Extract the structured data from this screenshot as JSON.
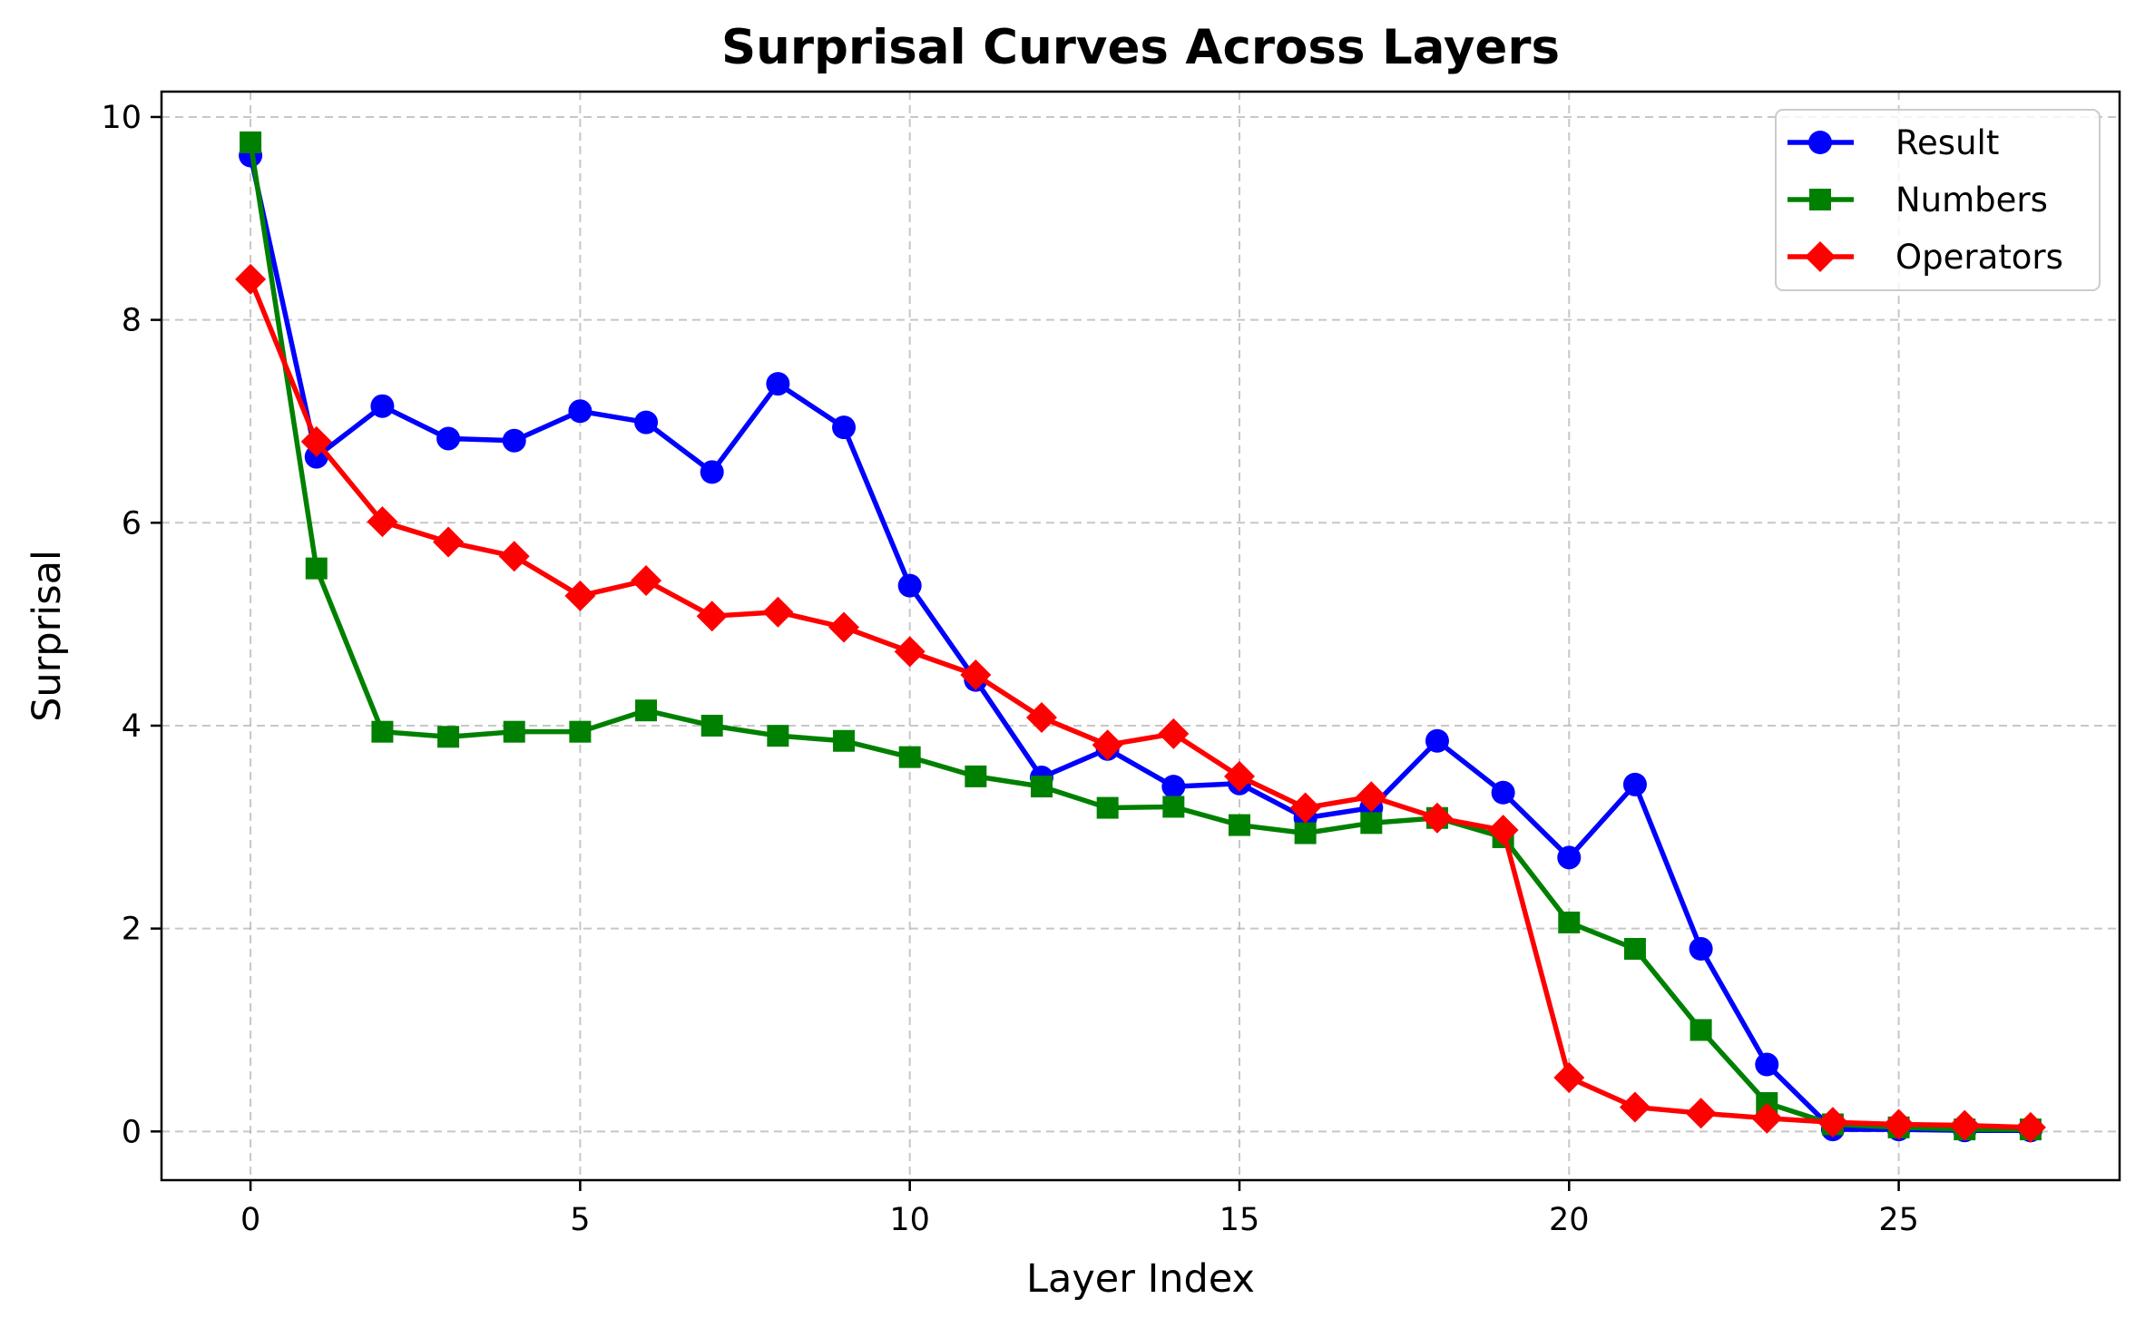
{
  "chart_data": {
    "type": "line",
    "title": "Surprisal Curves Across Layers",
    "xlabel": "Layer Index",
    "ylabel": "Surprisal",
    "xlim": [
      -1.35,
      28.35
    ],
    "ylim": [
      -0.48,
      10.25
    ],
    "xticks": [
      0,
      5,
      10,
      15,
      20,
      25
    ],
    "yticks": [
      0,
      2,
      4,
      6,
      8,
      10
    ],
    "grid": true,
    "legend_position": "top-right",
    "x": [
      0,
      1,
      2,
      3,
      4,
      5,
      6,
      7,
      8,
      9,
      10,
      11,
      12,
      13,
      14,
      15,
      16,
      17,
      18,
      19,
      20,
      21,
      22,
      23,
      24,
      25,
      26,
      27
    ],
    "series": [
      {
        "name": "Result",
        "color": "#0000ff",
        "marker": "circle",
        "values": [
          9.62,
          6.65,
          7.15,
          6.83,
          6.81,
          7.1,
          6.99,
          6.5,
          7.37,
          6.94,
          5.38,
          4.45,
          3.49,
          3.77,
          3.4,
          3.43,
          3.09,
          3.19,
          3.85,
          3.34,
          2.7,
          3.42,
          1.8,
          0.66,
          0.02,
          0.02,
          0.01,
          0.01
        ]
      },
      {
        "name": "Numbers",
        "color": "#008000",
        "marker": "square",
        "values": [
          9.75,
          5.55,
          3.94,
          3.89,
          3.94,
          3.94,
          4.15,
          4.0,
          3.9,
          3.85,
          3.69,
          3.5,
          3.4,
          3.19,
          3.2,
          3.02,
          2.94,
          3.04,
          3.09,
          2.9,
          2.06,
          1.8,
          1.0,
          0.28,
          0.07,
          0.04,
          0.02,
          0.02
        ]
      },
      {
        "name": "Operators",
        "color": "#ff0000",
        "marker": "diamond",
        "values": [
          8.4,
          6.8,
          6.01,
          5.81,
          5.67,
          5.28,
          5.43,
          5.08,
          5.12,
          4.97,
          4.73,
          4.5,
          4.08,
          3.81,
          3.92,
          3.5,
          3.19,
          3.3,
          3.09,
          2.97,
          0.53,
          0.24,
          0.18,
          0.13,
          0.09,
          0.07,
          0.06,
          0.04
        ]
      }
    ]
  }
}
